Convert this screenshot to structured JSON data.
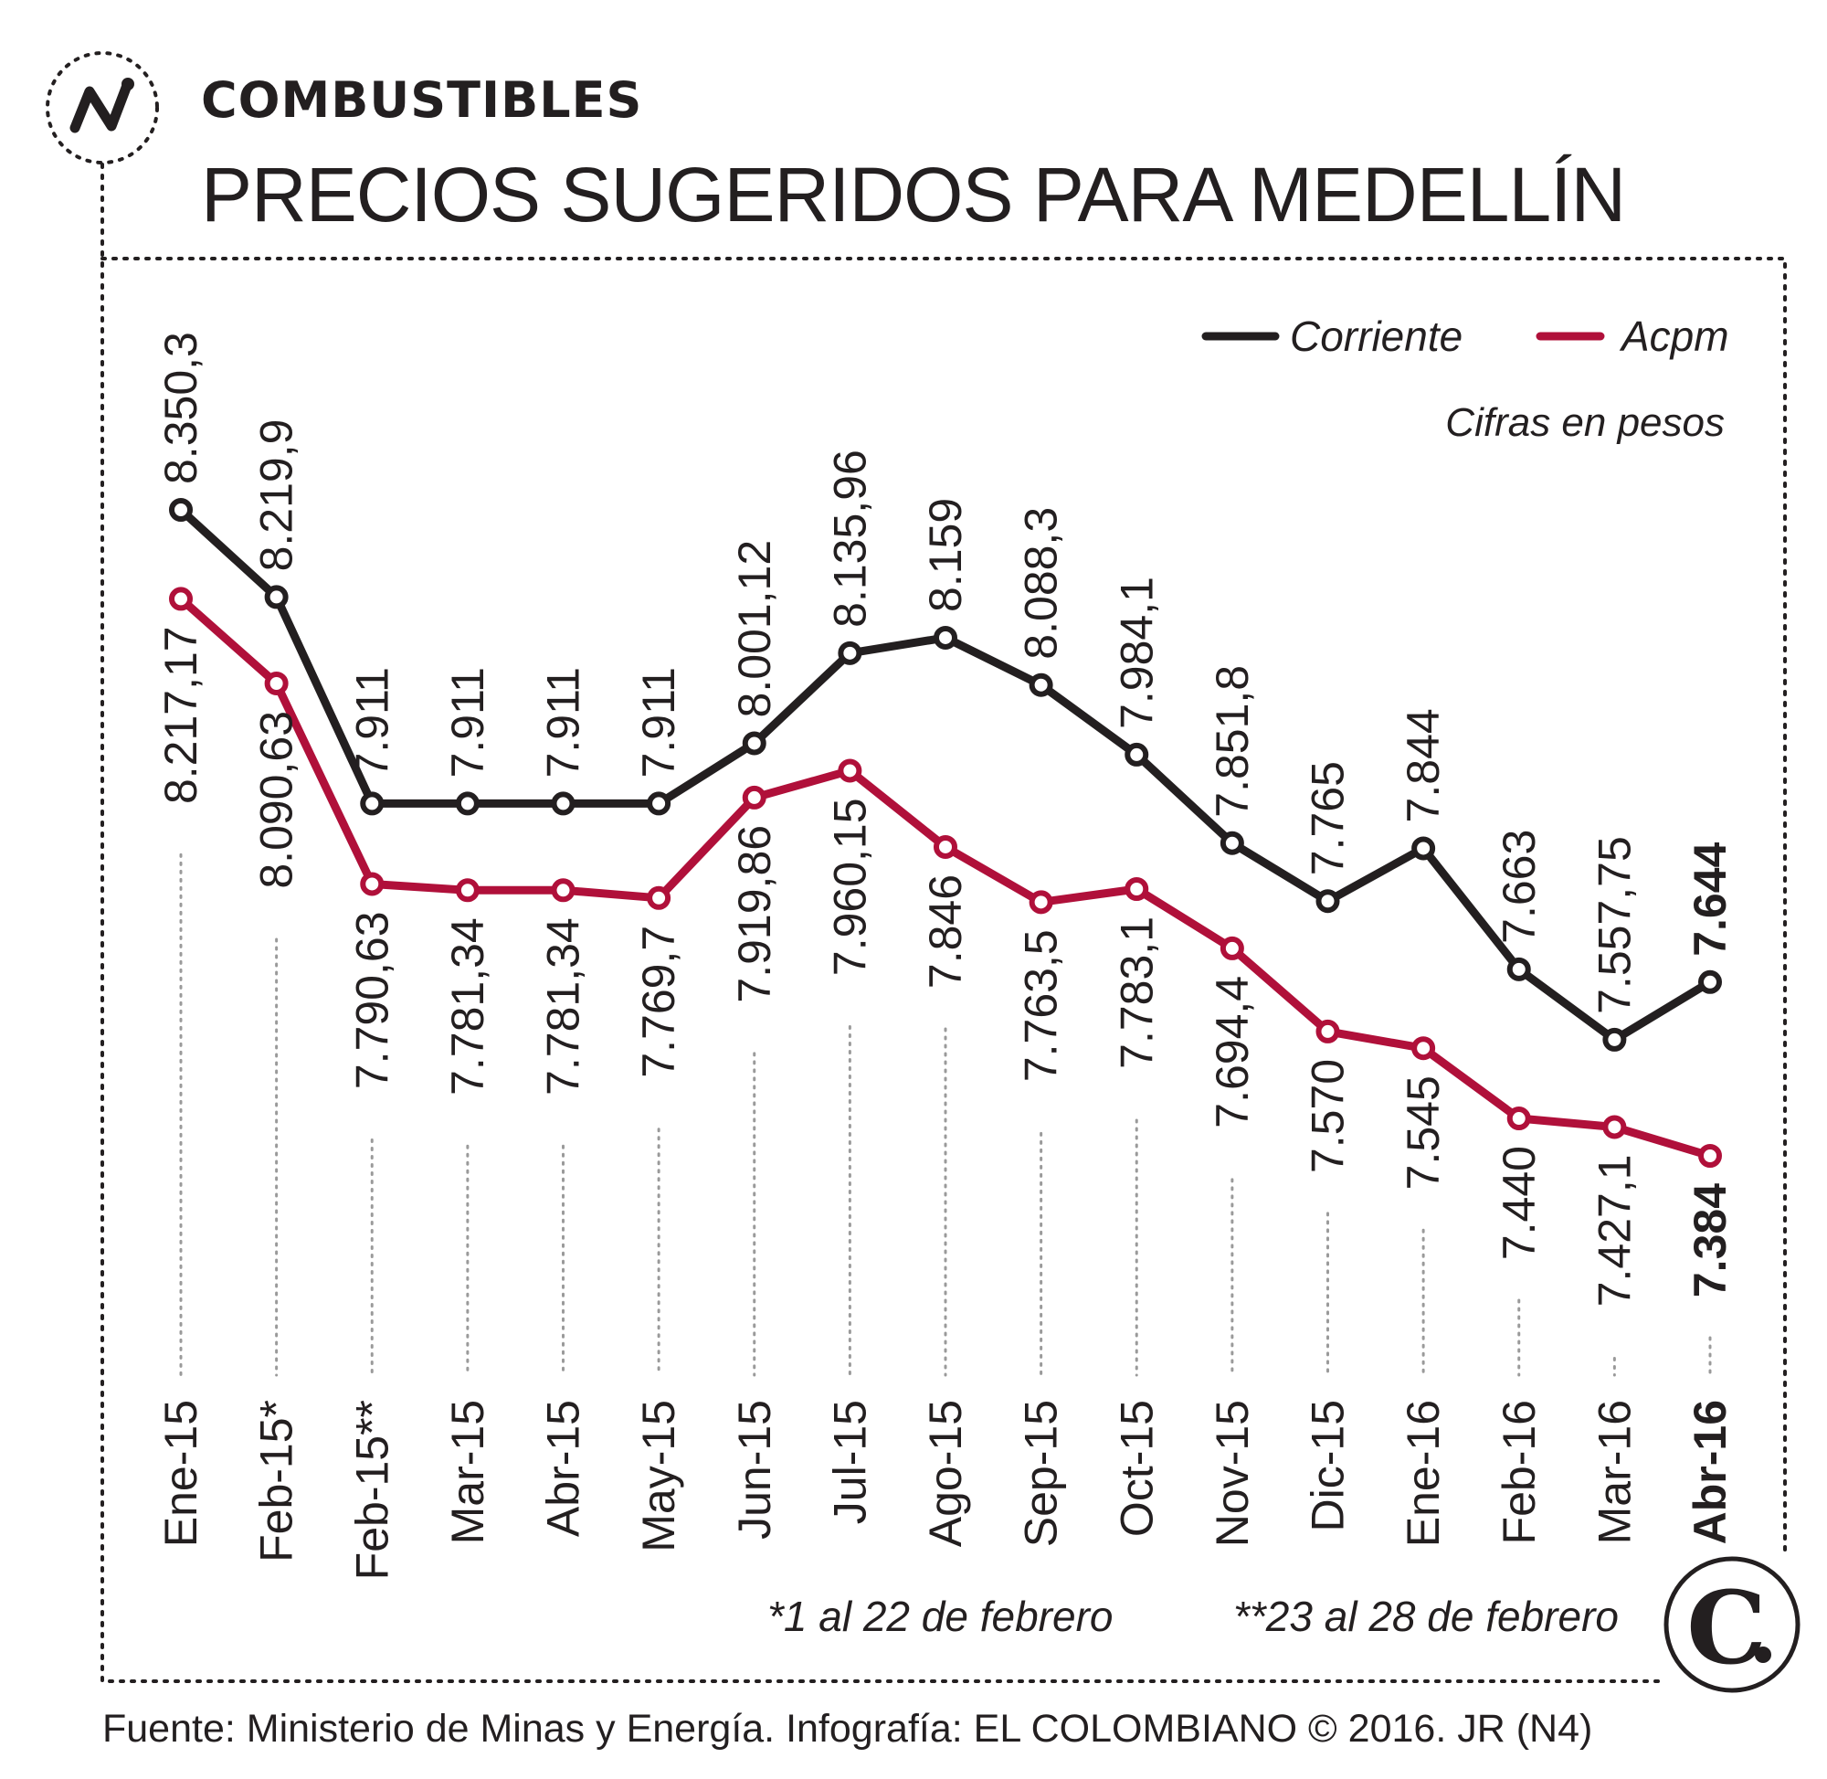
{
  "header": {
    "kicker": "COMBUSTIBLES",
    "title": "PRECIOS SUGERIDOS PARA MEDELLÍN"
  },
  "legend": {
    "corriente": "Corriente",
    "acpm": "Acpm",
    "units_note": "Cifras en pesos"
  },
  "footnotes": {
    "note1": "*1 al 22 de febrero",
    "note2": "**23 al 28 de febrero"
  },
  "source": "Fuente: Ministerio de Minas y Energía. Infografía: EL COLOMBIANO © 2016. JR (N4)",
  "colors": {
    "corriente": "#231f20",
    "acpm": "#b0103a",
    "text": "#231f20"
  },
  "icons": {
    "brand": "logo-icon",
    "publisher": "el-colombiano-logo-icon"
  },
  "chart_data": {
    "type": "line",
    "categories": [
      "Ene-15",
      "Feb-15*",
      "Feb-15**",
      "Mar-15",
      "Abr-15",
      "May-15",
      "Jun-15",
      "Jul-15",
      "Ago-15",
      "Sep-15",
      "Oct-15",
      "Nov-15",
      "Dic-15",
      "Ene-16",
      "Feb-16",
      "Mar-16",
      "Abr-16"
    ],
    "ylim": [
      7384,
      8350.3
    ],
    "grid": false,
    "legend_position": "top-right",
    "series": [
      {
        "name": "Corriente",
        "values": [
          8350.3,
          8219.9,
          7911,
          7911,
          7911,
          7911,
          8001.12,
          8135.96,
          8159,
          8088.3,
          7984.1,
          7851.8,
          7765,
          7844,
          7663,
          7557.75,
          7644
        ],
        "labels": [
          "8.350,3",
          "8.219,9",
          "7.911",
          "7.911",
          "7.911",
          "7.911",
          "8.001,12",
          "8.135,96",
          "8.159",
          "8.088,3",
          "7.984,1",
          "7.851,8",
          "7.765",
          "7.844",
          "7.663",
          "7.557,75",
          "7.644"
        ]
      },
      {
        "name": "Acpm",
        "values": [
          8217.17,
          8090.63,
          7790.63,
          7781.34,
          7781.34,
          7769.7,
          7919.86,
          7960.15,
          7846,
          7763.5,
          7783.1,
          7694.4,
          7570,
          7545,
          7440,
          7427.1,
          7384
        ],
        "labels": [
          "8.217,17",
          "8.090,63",
          "7.790,63",
          "7.781,34",
          "7.781,34",
          "7.769,7",
          "7.919,86",
          "7.960,15",
          "7.846",
          "7.763,5",
          "7.783,1",
          "7.694,4",
          "7.570",
          "7.545",
          "7.440",
          "7.427,1",
          "7.384"
        ]
      }
    ]
  }
}
